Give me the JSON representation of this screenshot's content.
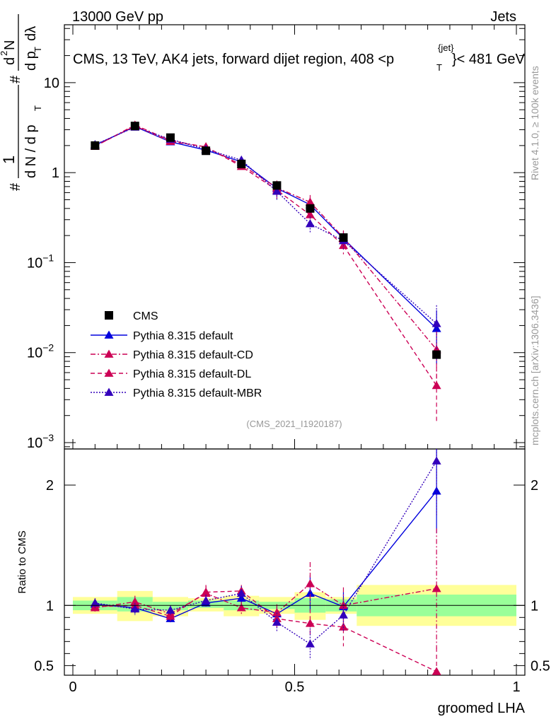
{
  "header": {
    "left": "13000 GeV pp",
    "right": "Jets"
  },
  "watermark": {
    "analysis": "(CMS_2021_I1920187)",
    "rivet": "Rivet 4.1.0, ≥ 100k events",
    "mcplots": "mcplots.cern.ch [arXiv:1306.3436]"
  },
  "chart_data": [
    {
      "type": "line",
      "panel": "main",
      "yscale": "log",
      "title": "CMS, 13 TeV, AK4 jets, forward dijet region, 408 <p_T^{jet}< 481 GeV",
      "title_parts": {
        "before": "CMS, 13 TeV, AK4 jets, forward dijet region, 408 <p",
        "sup": "{jet}",
        "sub": "T",
        "after": "}< 481 GeV"
      },
      "ylabel": "1/dN/dp_T # d^2N/dp_T dλ",
      "ylabel_parts": {
        "hash": "#",
        "one": "1",
        "den": "d N / d p",
        "T": "T",
        "num": "d",
        "two": "2",
        "N": "N",
        "den2": "d p",
        "den2b": "dλ"
      },
      "xlim": [
        0,
        1
      ],
      "ylim": [
        0.00085,
        44
      ],
      "y_tick_labels": [
        {
          "value": 10,
          "base": "10",
          "exp": ""
        },
        {
          "value": 1,
          "base": "1",
          "exp": ""
        },
        {
          "value": 0.1,
          "base": "10",
          "exp": "−1"
        },
        {
          "value": 0.01,
          "base": "10",
          "exp": "−2"
        },
        {
          "value": 0.001,
          "base": "10",
          "exp": "−3"
        }
      ],
      "x": [
        0.05,
        0.14,
        0.22,
        0.3,
        0.38,
        0.46,
        0.535,
        0.61,
        0.82
      ],
      "cms": {
        "name": "CMS",
        "values": [
          2.0,
          3.3,
          2.45,
          1.75,
          1.25,
          0.72,
          0.4,
          0.19,
          0.0095
        ]
      },
      "series": [
        {
          "name": "Pythia 8.315 default",
          "color": "#0000dd",
          "dash": "",
          "values": [
            2.02,
            3.25,
            2.2,
            1.78,
            1.32,
            0.67,
            0.44,
            0.185,
            0.0185
          ]
        },
        {
          "name": "Pythia 8.315 default-CD",
          "color": "#cc0055",
          "dash": "7,3,2,3",
          "values": [
            1.96,
            3.38,
            2.28,
            1.92,
            1.22,
            0.68,
            0.47,
            0.19,
            0.0108
          ]
        },
        {
          "name": "Pythia 8.315 default-DL",
          "color": "#cc0055",
          "dash": "6,4",
          "values": [
            1.97,
            3.3,
            2.22,
            1.94,
            1.17,
            0.64,
            0.34,
            0.155,
            0.0043
          ]
        },
        {
          "name": "Pythia 8.315 default-MBR",
          "color": "#3300bb",
          "dash": "2,2",
          "values": [
            2.05,
            3.2,
            2.35,
            1.82,
            1.38,
            0.62,
            0.27,
            0.175,
            0.021
          ]
        }
      ],
      "legend_position": "center-left"
    },
    {
      "type": "line",
      "panel": "ratio",
      "ylabel": "Ratio to CMS",
      "xlabel": "groomed LHA",
      "xlim": [
        0,
        1
      ],
      "ylim": [
        0.42,
        2.3
      ],
      "y_tick_labels": [
        "0.5",
        "1",
        "2"
      ],
      "y_ticks": [
        0.5,
        1,
        2
      ],
      "x_tick_labels": [
        "0",
        "0.5",
        "1"
      ],
      "x_ticks": [
        0,
        0.5,
        1
      ],
      "bins": [
        {
          "lo": 0.0,
          "hi": 0.1,
          "stat": [
            0.96,
            1.04
          ],
          "tot": [
            0.93,
            1.07
          ]
        },
        {
          "lo": 0.1,
          "hi": 0.18,
          "stat": [
            0.95,
            1.07
          ],
          "tot": [
            0.87,
            1.12
          ]
        },
        {
          "lo": 0.18,
          "hi": 0.26,
          "stat": [
            0.96,
            1.03
          ],
          "tot": [
            0.91,
            1.07
          ]
        },
        {
          "lo": 0.26,
          "hi": 0.34,
          "stat": [
            0.98,
            1.04
          ],
          "tot": [
            0.95,
            1.06
          ]
        },
        {
          "lo": 0.34,
          "hi": 0.42,
          "stat": [
            0.96,
            1.04
          ],
          "tot": [
            0.91,
            1.08
          ]
        },
        {
          "lo": 0.42,
          "hi": 0.5,
          "stat": [
            0.97,
            1.03
          ],
          "tot": [
            0.93,
            1.07
          ]
        },
        {
          "lo": 0.5,
          "hi": 0.57,
          "stat": [
            0.94,
            1.06
          ],
          "tot": [
            0.88,
            1.11
          ]
        },
        {
          "lo": 0.57,
          "hi": 0.64,
          "stat": [
            0.95,
            1.05
          ],
          "tot": [
            0.93,
            1.07
          ]
        },
        {
          "lo": 0.64,
          "hi": 1.0,
          "stat": [
            0.91,
            1.09
          ],
          "tot": [
            0.83,
            1.17
          ]
        }
      ],
      "series": [
        {
          "name": "Pythia 8.315 default",
          "color": "#0000dd",
          "dash": "",
          "values": [
            1.01,
            0.98,
            0.89,
            1.02,
            1.06,
            0.93,
            1.1,
            0.99,
            1.95
          ],
          "err": [
            0.04,
            0.05,
            0.03,
            0.03,
            0.05,
            0.06,
            0.15,
            0.12,
            0.35
          ]
        },
        {
          "name": "Pythia 8.315 default-CD",
          "color": "#cc0055",
          "dash": "7,3,2,3",
          "values": [
            0.98,
            1.03,
            0.93,
            1.1,
            0.98,
            0.94,
            1.18,
            1.0,
            1.14
          ],
          "err": [
            0.04,
            0.05,
            0.04,
            0.06,
            0.05,
            0.07,
            0.18,
            0.15,
            0.5
          ]
        },
        {
          "name": "Pythia 8.315 default-DL",
          "color": "#cc0055",
          "dash": "6,4",
          "values": [
            0.99,
            1.0,
            0.91,
            1.11,
            1.12,
            0.89,
            0.85,
            0.82,
            0.45
          ],
          "err": [
            0.04,
            0.05,
            0.04,
            0.06,
            0.05,
            0.07,
            0.12,
            0.16,
            0.2
          ]
        },
        {
          "name": "Pythia 8.315 default-MBR",
          "color": "#3300bb",
          "dash": "2,2",
          "values": [
            1.02,
            0.97,
            0.96,
            1.04,
            1.1,
            0.86,
            0.68,
            0.92,
            2.2
          ],
          "err": [
            0.04,
            0.05,
            0.04,
            0.05,
            0.06,
            0.08,
            0.13,
            0.14,
            0.45
          ]
        }
      ]
    }
  ]
}
